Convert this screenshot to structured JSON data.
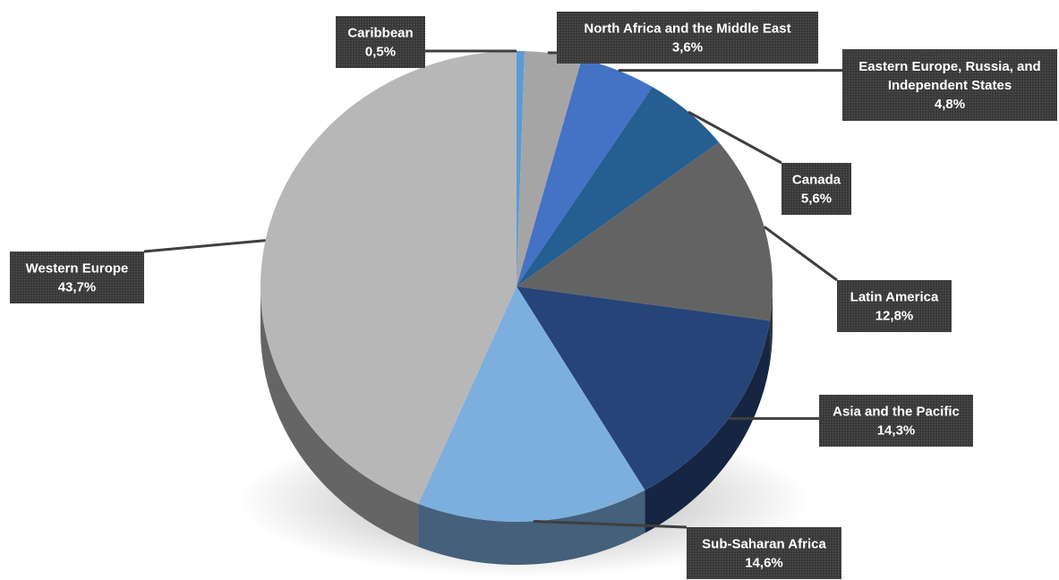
{
  "chart_data": {
    "type": "pie",
    "categories": [
      "Caribbean",
      "North Africa and the Middle East",
      "Eastern Europe, Russia, and Independent States",
      "Canada",
      "Latin America",
      "Asia and the Pacific",
      "Sub-Saharan Africa",
      "Western Europe"
    ],
    "values": [
      0.5,
      3.6,
      4.8,
      5.6,
      12.8,
      14.3,
      14.6,
      43.7
    ],
    "value_labels": [
      "0,5%",
      "3,6%",
      "4,8%",
      "5,6%",
      "12,8%",
      "14,3%",
      "14,6%",
      "43,7%"
    ],
    "colors": [
      "#5b9bd5",
      "#a5a5a5",
      "#4472c4",
      "#255e91",
      "#636363",
      "#264478",
      "#7cafdd",
      "#b7b7b7"
    ],
    "start_angle_deg": 0,
    "direction": "clockwise",
    "legend": "none",
    "label_style": "callout boxes with leader lines",
    "style": "3D pie"
  }
}
